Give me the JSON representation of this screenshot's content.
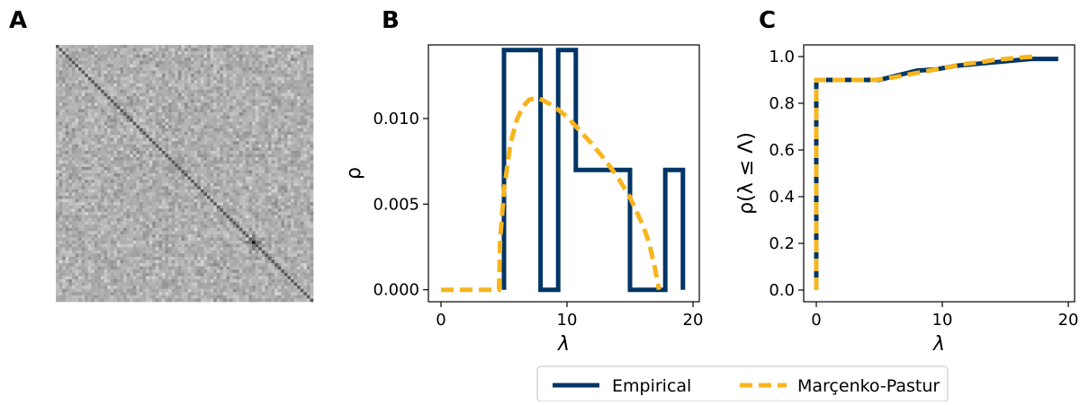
{
  "legend": {
    "empirical_label": "Empirical",
    "mp_label": "Marçenko-Pastur"
  },
  "colors": {
    "empirical": "#003566",
    "marchenko_pastur": "#f6b51e",
    "matrix_background": "#cccccc",
    "matrix_diagonal": "#444444"
  },
  "chart_data": [
    {
      "panel": "A",
      "type": "heatmap",
      "description_values": "correlation matrix image, grey noise with dark diagonal",
      "size": 80,
      "colormap": "greys",
      "features": [
        "dark main diagonal",
        "strong dark spot near center of diagonal"
      ]
    },
    {
      "panel": "B",
      "type": "line",
      "xlabel": "λ",
      "ylabel": "ρ",
      "xlim": [
        -1,
        20.5
      ],
      "ylim": [
        -0.0007,
        0.0143
      ],
      "xticks": [
        0,
        10,
        20
      ],
      "yticks": [
        0.0,
        0.005,
        0.01
      ],
      "ytick_labels": [
        "0.000",
        "0.005",
        "0.010"
      ],
      "series": [
        {
          "name": "Empirical",
          "style": "step",
          "x": [
            5.0,
            5.0,
            7.9,
            7.9,
            9.3,
            9.3,
            10.7,
            10.7,
            15.0,
            15.0,
            17.8,
            17.8,
            19.2,
            19.2
          ],
          "y": [
            0.0,
            0.014,
            0.014,
            0.0,
            0.0,
            0.014,
            0.014,
            0.007,
            0.007,
            0.0,
            0.0,
            0.007,
            0.007,
            0.0
          ]
        },
        {
          "name": "Marçenko-Pastur",
          "style": "dashed",
          "x": [
            0.0,
            4.6,
            4.7,
            5.0,
            5.5,
            6.0,
            6.5,
            7.0,
            7.5,
            8.0,
            9.0,
            10.0,
            11.0,
            12.0,
            13.0,
            14.0,
            15.0,
            16.0,
            16.5,
            17.0,
            17.3
          ],
          "y": [
            0.0,
            0.0,
            0.003,
            0.0058,
            0.0085,
            0.0099,
            0.0107,
            0.0111,
            0.0112,
            0.0111,
            0.0107,
            0.0101,
            0.0093,
            0.0085,
            0.0076,
            0.0066,
            0.0054,
            0.0038,
            0.0028,
            0.0012,
            0.0
          ]
        }
      ]
    },
    {
      "panel": "C",
      "type": "line",
      "xlabel": "λ",
      "ylabel": "ρ(λ ≤ Λ)",
      "xlim": [
        -1,
        20.5
      ],
      "ylim": [
        -0.05,
        1.05
      ],
      "xticks": [
        0,
        10,
        20
      ],
      "yticks": [
        0.0,
        0.2,
        0.4,
        0.6,
        0.8,
        1.0
      ],
      "ytick_labels": [
        "0.0",
        "0.2",
        "0.4",
        "0.6",
        "0.8",
        "1.0"
      ],
      "series": [
        {
          "name": "Empirical",
          "style": "solid",
          "x": [
            0.0,
            0.0,
            5.0,
            6.5,
            8.0,
            9.5,
            11.0,
            13.0,
            15.0,
            17.0,
            19.2
          ],
          "y": [
            0.0,
            0.9,
            0.9,
            0.92,
            0.94,
            0.945,
            0.96,
            0.97,
            0.98,
            0.99,
            0.99
          ]
        },
        {
          "name": "Marçenko-Pastur",
          "style": "dashed",
          "x": [
            0.0,
            0.0,
            4.7,
            6.0,
            7.0,
            8.0,
            9.0,
            10.0,
            11.0,
            12.0,
            13.0,
            14.0,
            15.0,
            16.0,
            17.3
          ],
          "y": [
            0.0,
            0.9,
            0.9,
            0.91,
            0.92,
            0.93,
            0.94,
            0.95,
            0.96,
            0.97,
            0.975,
            0.985,
            0.99,
            0.995,
            1.0
          ]
        }
      ]
    }
  ],
  "panel_labels": [
    "A",
    "B",
    "C"
  ]
}
